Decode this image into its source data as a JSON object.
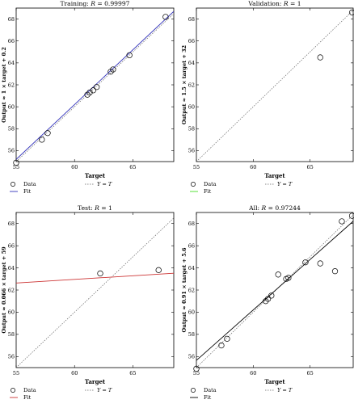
{
  "chart_data": [
    {
      "type": "scatter",
      "title": "Training: R = 0.99997",
      "title_parts": [
        "Training: ",
        "R",
        " = 0.99997"
      ],
      "xlabel": "Target",
      "ylabel": "Output ≈ 1 × target + 0.2",
      "xlim": [
        55,
        68.5
      ],
      "ylim": [
        55,
        69
      ],
      "xticks": [
        55,
        60,
        65
      ],
      "yticks": [
        56,
        58,
        60,
        62,
        64,
        66,
        68
      ],
      "fit_color": "#3333bb",
      "fit_slope": 1,
      "fit_intercept": 0.2,
      "points": [
        [
          55,
          54.9
        ],
        [
          57.2,
          57.0
        ],
        [
          57.7,
          57.6
        ],
        [
          61.1,
          61.1
        ],
        [
          61.3,
          61.3
        ],
        [
          61.6,
          61.5
        ],
        [
          61.9,
          61.8
        ],
        [
          63.1,
          63.2
        ],
        [
          63.3,
          63.4
        ],
        [
          64.7,
          64.7
        ],
        [
          67.8,
          68.2
        ]
      ],
      "legend": {
        "data": "Data",
        "fit": "Fit",
        "identity": "Y = T"
      }
    },
    {
      "type": "scatter",
      "title": "Validation: R = 1",
      "title_parts": [
        "Validation: ",
        "R",
        " = 1"
      ],
      "xlabel": "Target",
      "ylabel": "Output ≈ 1.5 × target + 32",
      "xlim": [
        55,
        68.8
      ],
      "ylim": [
        55,
        69
      ],
      "xticks": [
        55,
        60,
        65
      ],
      "yticks": [
        56,
        58,
        60,
        62,
        64,
        66,
        68
      ],
      "fit_color": "#44dd22",
      "fit_slope": 1.5,
      "fit_intercept": 32,
      "points": [
        [
          65.9,
          64.5
        ],
        [
          68.7,
          68.6
        ]
      ],
      "legend": {
        "data": "Data",
        "fit": "Fit",
        "identity": "Y = T"
      }
    },
    {
      "type": "scatter",
      "title": "Test: R = 1",
      "title_parts": [
        "Test: ",
        "R",
        " = 1"
      ],
      "xlabel": "Target",
      "ylabel": "Output ≈ 0.066 × target + 59",
      "xlim": [
        55,
        68.5
      ],
      "ylim": [
        55,
        69
      ],
      "xticks": [
        55,
        60,
        65
      ],
      "yticks": [
        56,
        58,
        60,
        62,
        64,
        66,
        68
      ],
      "fit_color": "#cc3333",
      "fit_slope": 0.066,
      "fit_intercept": 59,
      "points": [
        [
          62.2,
          63.5
        ],
        [
          67.2,
          63.8
        ]
      ],
      "legend": {
        "data": "Data",
        "fit": "Fit",
        "identity": "Y = T"
      }
    },
    {
      "type": "scatter",
      "title": "All: R = 0.97244",
      "title_parts": [
        "All: ",
        "R",
        " = 0.97244"
      ],
      "xlabel": "Target",
      "ylabel": "Output ≈ 0.91 × target + 5.6",
      "xlim": [
        55,
        68.8
      ],
      "ylim": [
        55,
        69
      ],
      "xticks": [
        55,
        60,
        65
      ],
      "yticks": [
        56,
        58,
        60,
        62,
        64,
        66,
        68
      ],
      "fit_color": "#000000",
      "fit_slope": 0.91,
      "fit_intercept": 5.6,
      "points": [
        [
          55,
          54.9
        ],
        [
          57.2,
          57.0
        ],
        [
          57.7,
          57.6
        ],
        [
          61.1,
          61.0
        ],
        [
          61.3,
          61.2
        ],
        [
          61.6,
          61.5
        ],
        [
          62.2,
          63.4
        ],
        [
          62.9,
          63.0
        ],
        [
          63.1,
          63.1
        ],
        [
          64.6,
          64.5
        ],
        [
          65.9,
          64.4
        ],
        [
          67.2,
          63.7
        ],
        [
          67.8,
          68.2
        ],
        [
          68.7,
          68.7
        ]
      ],
      "legend": {
        "data": "Data",
        "fit": "Fit",
        "identity": "Y = T"
      }
    }
  ]
}
